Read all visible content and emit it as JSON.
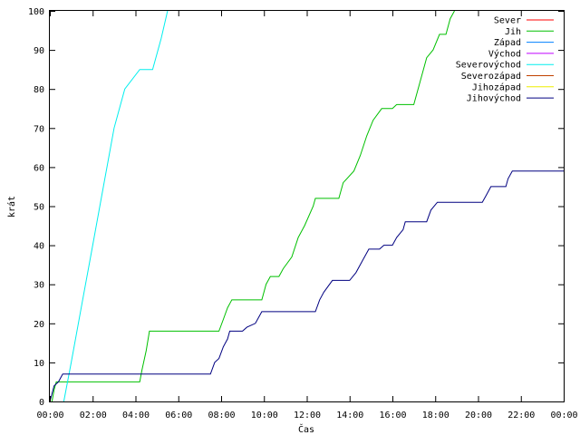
{
  "chart_data": {
    "type": "line",
    "xlabel": "Čas",
    "ylabel": "krát",
    "xlim": [
      0,
      24
    ],
    "ylim": [
      0,
      100
    ],
    "x_ticks": [
      {
        "value": 0,
        "label": "00:00"
      },
      {
        "value": 2,
        "label": "02:00"
      },
      {
        "value": 4,
        "label": "04:00"
      },
      {
        "value": 6,
        "label": "06:00"
      },
      {
        "value": 8,
        "label": "08:00"
      },
      {
        "value": 10,
        "label": "10:00"
      },
      {
        "value": 12,
        "label": "12:00"
      },
      {
        "value": 14,
        "label": "14:00"
      },
      {
        "value": 16,
        "label": "16:00"
      },
      {
        "value": 18,
        "label": "18:00"
      },
      {
        "value": 20,
        "label": "20:00"
      },
      {
        "value": 22,
        "label": "22:00"
      },
      {
        "value": 24,
        "label": "00:00"
      }
    ],
    "y_ticks": [
      0,
      10,
      20,
      30,
      40,
      50,
      60,
      70,
      80,
      90,
      100
    ],
    "grid": false,
    "legend_position": "top-right",
    "series": [
      {
        "name": "Sever",
        "color": "#ff0000",
        "points": []
      },
      {
        "name": "Jih",
        "color": "#00c000",
        "points": [
          [
            0.1,
            0
          ],
          [
            0.2,
            3
          ],
          [
            0.3,
            5
          ],
          [
            4.2,
            5
          ],
          [
            4.3,
            8
          ],
          [
            4.5,
            13
          ],
          [
            4.65,
            18
          ],
          [
            7.9,
            18
          ],
          [
            8.1,
            21
          ],
          [
            8.3,
            24
          ],
          [
            8.5,
            26
          ],
          [
            9.9,
            26
          ],
          [
            10.1,
            30
          ],
          [
            10.3,
            32
          ],
          [
            10.7,
            32
          ],
          [
            10.9,
            34
          ],
          [
            11.3,
            37
          ],
          [
            11.6,
            42
          ],
          [
            11.9,
            45
          ],
          [
            12.3,
            50
          ],
          [
            12.4,
            52
          ],
          [
            13.5,
            52
          ],
          [
            13.7,
            56
          ],
          [
            14.2,
            59
          ],
          [
            14.5,
            63
          ],
          [
            14.8,
            68
          ],
          [
            15.1,
            72
          ],
          [
            15.5,
            75
          ],
          [
            16.0,
            75
          ],
          [
            16.2,
            76
          ],
          [
            17.0,
            76
          ],
          [
            17.3,
            82
          ],
          [
            17.6,
            88
          ],
          [
            17.9,
            90
          ],
          [
            18.2,
            94
          ],
          [
            18.5,
            94
          ],
          [
            18.7,
            98
          ],
          [
            18.9,
            100
          ]
        ]
      },
      {
        "name": "Západ",
        "color": "#0080ff",
        "points": []
      },
      {
        "name": "Východ",
        "color": "#c000ff",
        "points": []
      },
      {
        "name": "Severovýchod",
        "color": "#00eeee",
        "points": [
          [
            0.65,
            0
          ],
          [
            1.0,
            10
          ],
          [
            1.5,
            25
          ],
          [
            2.0,
            40
          ],
          [
            2.5,
            55
          ],
          [
            3.0,
            70
          ],
          [
            3.5,
            80
          ],
          [
            4.2,
            85
          ],
          [
            4.8,
            85
          ],
          [
            5.2,
            93
          ],
          [
            5.5,
            100
          ]
        ]
      },
      {
        "name": "Severozápad",
        "color": "#c04000",
        "points": []
      },
      {
        "name": "Jihozápad",
        "color": "#eeee00",
        "points": []
      },
      {
        "name": "Jihovýchod",
        "color": "#000080",
        "points": [
          [
            0.0,
            0
          ],
          [
            0.1,
            2
          ],
          [
            0.2,
            4
          ],
          [
            0.4,
            5
          ],
          [
            0.5,
            6
          ],
          [
            0.6,
            7
          ],
          [
            7.5,
            7
          ],
          [
            7.7,
            10
          ],
          [
            7.9,
            11
          ],
          [
            8.1,
            14
          ],
          [
            8.3,
            16
          ],
          [
            8.4,
            18
          ],
          [
            9.0,
            18
          ],
          [
            9.2,
            19
          ],
          [
            9.6,
            20
          ],
          [
            9.9,
            23
          ],
          [
            12.4,
            23
          ],
          [
            12.6,
            26
          ],
          [
            12.8,
            28
          ],
          [
            13.2,
            31
          ],
          [
            14.0,
            31
          ],
          [
            14.3,
            33
          ],
          [
            14.6,
            36
          ],
          [
            14.9,
            39
          ],
          [
            15.4,
            39
          ],
          [
            15.6,
            40
          ],
          [
            16.0,
            40
          ],
          [
            16.2,
            42
          ],
          [
            16.5,
            44
          ],
          [
            16.6,
            46
          ],
          [
            17.6,
            46
          ],
          [
            17.8,
            49
          ],
          [
            18.1,
            51
          ],
          [
            20.2,
            51
          ],
          [
            20.4,
            53
          ],
          [
            20.6,
            55
          ],
          [
            21.3,
            55
          ],
          [
            21.4,
            57
          ],
          [
            21.6,
            59
          ],
          [
            24.0,
            59
          ]
        ]
      }
    ]
  }
}
